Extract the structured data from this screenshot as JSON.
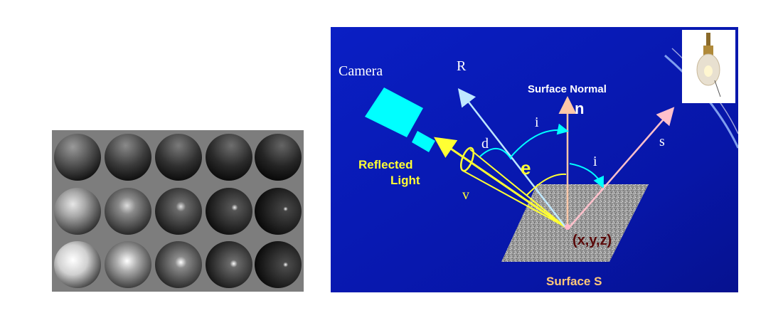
{
  "spheres_panel": {
    "rows": 3,
    "columns": 5,
    "background": "#7d7d7d"
  },
  "diagram": {
    "background_color": "#0a1fc4",
    "labels": {
      "camera": "Camera",
      "reflected_ray": "R",
      "surface_normal_title": "Surface Normal",
      "normal_symbol": "n",
      "incident_angle_1": "i",
      "incident_angle_2": "i",
      "source_ray": "s",
      "angle_d": "d",
      "emission_angle": "e",
      "view_ray": "v",
      "reflected_light_line1": "Reflected",
      "reflected_light_line2": "Light",
      "point": "(x,y,z)",
      "surface": "Surface S"
    },
    "colors": {
      "label_white": "#ffffff",
      "label_yellow": "#ffff33",
      "label_peach": "#ffc87a",
      "point_label": "#5a0a0a",
      "camera": "#00ffff",
      "view_ray": "#ffff33",
      "reflected_ray": "#bfe8ff",
      "normal": "#ffc8a8",
      "source_ray": "#ffc0cb",
      "angle_arc": "#00ffff"
    },
    "icons": [
      "light-bulb-icon",
      "camera-icon"
    ]
  }
}
